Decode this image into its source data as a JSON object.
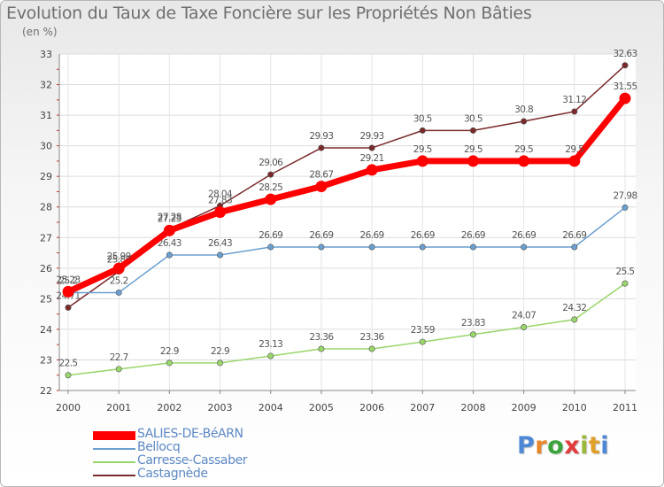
{
  "chart_data": {
    "type": "line",
    "title": "Evolution du Taux de Taxe Foncière sur les Propriétés Non Bâties",
    "subtitle": "(en %)",
    "x": [
      "2000",
      "2001",
      "2002",
      "2003",
      "2004",
      "2005",
      "2006",
      "2007",
      "2008",
      "2009",
      "2010",
      "2011"
    ],
    "ylim": [
      22,
      33
    ],
    "yticks": [
      22,
      23,
      24,
      25,
      26,
      27,
      28,
      29,
      30,
      31,
      32,
      33
    ],
    "grid": true,
    "legend_position": "bottom-left",
    "series": [
      {
        "name": "Castagnède",
        "color": "#7a2a2a",
        "weight": "thin",
        "values": [
          24.71,
          25.89,
          27.28,
          28.04,
          29.06,
          29.93,
          29.93,
          30.5,
          30.5,
          30.8,
          31.12,
          32.63
        ],
        "labels": [
          "24.71",
          "25.89",
          "27.28",
          "28.04",
          "29.06",
          "29.93",
          "29.93",
          "30.5",
          "30.5",
          "30.8",
          "31.12",
          "32.63"
        ]
      },
      {
        "name": "Carresse-Cassaber",
        "color": "#99d66b",
        "weight": "thin",
        "values": [
          22.5,
          22.7,
          22.9,
          22.9,
          23.13,
          23.36,
          23.36,
          23.59,
          23.83,
          24.07,
          24.32,
          25.5
        ],
        "labels": [
          "22.5",
          "22.7",
          "22.9",
          "22.9",
          "23.13",
          "23.36",
          "23.36",
          "23.59",
          "23.83",
          "24.07",
          "24.32",
          "25.5"
        ]
      },
      {
        "name": "Bellocq",
        "color": "#6a9fcf",
        "weight": "thin",
        "values": [
          25.2,
          25.2,
          26.43,
          26.43,
          26.69,
          26.69,
          26.69,
          26.69,
          26.69,
          26.69,
          26.69,
          27.98
        ],
        "labels": [
          "25.2",
          "25.2",
          "26.43",
          "26.43",
          "26.69",
          "26.69",
          "26.69",
          "26.69",
          "26.69",
          "26.69",
          "26.69",
          "27.98"
        ]
      },
      {
        "name": "SALIES-DE-BéARN",
        "color": "#ff0000",
        "weight": "thick",
        "values": [
          25.23,
          25.99,
          27.23,
          27.83,
          28.25,
          28.67,
          29.21,
          29.5,
          29.5,
          29.5,
          29.5,
          31.55
        ],
        "labels": [
          "25.23",
          "25.99",
          "27.23",
          "27.83",
          "28.25",
          "28.67",
          "29.21",
          "29.5",
          "29.5",
          "29.5",
          "29.5",
          "31.55"
        ]
      }
    ],
    "legend": [
      "SALIES-DE-BéARN",
      "Bellocq",
      "Carresse-Cassaber",
      "Castagnède"
    ]
  },
  "brand": {
    "text": "Proxiti",
    "letters": [
      "P",
      "r",
      "o",
      "x",
      "i",
      "t",
      "i"
    ],
    "colors": [
      "#4c88d6",
      "#e8862a",
      "#3aa43a",
      "#e23b3b",
      "#9bb83a",
      "#e0a02a",
      "#4c88d6"
    ]
  }
}
